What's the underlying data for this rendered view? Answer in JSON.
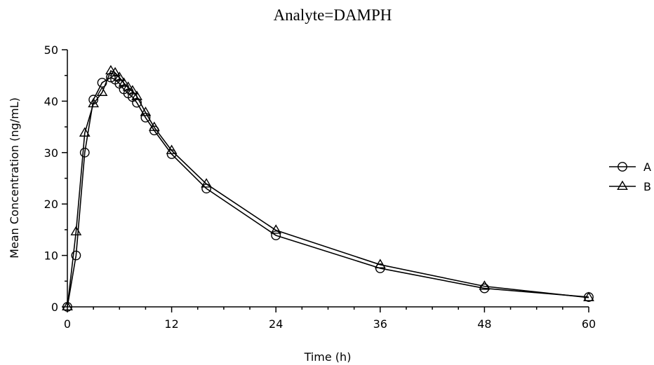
{
  "chart_data": {
    "type": "line",
    "title": "Analyte=DAMPH",
    "xlabel": "Time (h)",
    "ylabel": "Mean Concentration (ng/mL)",
    "xlim": [
      0,
      60
    ],
    "ylim": [
      0,
      50
    ],
    "xticks": [
      0,
      12,
      24,
      36,
      48,
      60
    ],
    "yticks": [
      0,
      10,
      20,
      30,
      40,
      50
    ],
    "grid": false,
    "legend_position": "right",
    "series": [
      {
        "name": "A",
        "marker": "circle",
        "x": [
          0,
          1,
          2,
          3,
          4,
          5,
          5.5,
          6,
          6.5,
          7,
          7.5,
          8,
          9,
          10,
          12,
          16,
          24,
          36,
          48,
          60
        ],
        "y": [
          0,
          10,
          30,
          40.3,
          43.6,
          44.6,
          44.2,
          43.4,
          42.3,
          41.5,
          40.8,
          39.7,
          36.8,
          34.3,
          29.7,
          23,
          13.9,
          7.5,
          3.6,
          1.9
        ]
      },
      {
        "name": "B",
        "marker": "triangle",
        "x": [
          0,
          1,
          2,
          3,
          4,
          5,
          5.5,
          6,
          6.5,
          7,
          7.5,
          8,
          9,
          10,
          12,
          16,
          24,
          36,
          48,
          60
        ],
        "y": [
          0,
          14.6,
          33.8,
          39.5,
          41.7,
          45.9,
          45.5,
          44.6,
          43.5,
          42.7,
          42,
          40.9,
          37.8,
          34.9,
          30.4,
          23.9,
          14.9,
          8.2,
          4,
          1.8
        ]
      }
    ]
  }
}
